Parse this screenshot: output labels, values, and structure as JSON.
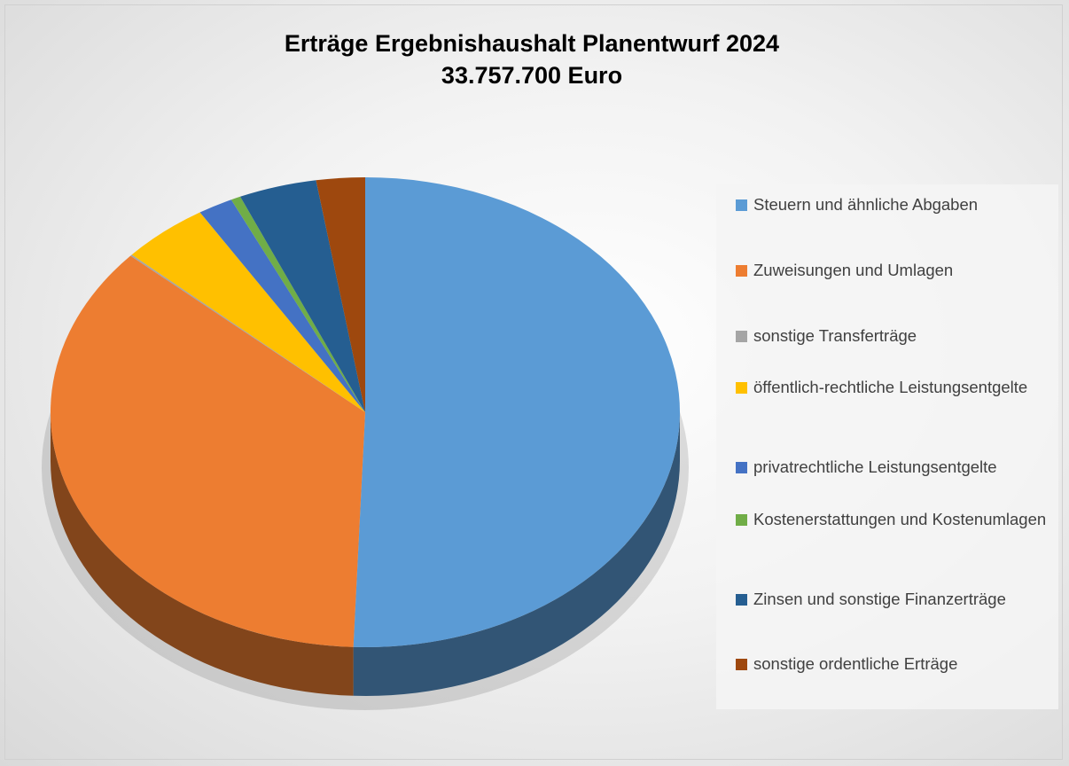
{
  "chart_data": {
    "type": "pie",
    "title": "Erträge Ergebnishaushalt Planentwurf 2024",
    "subtitle": "33.757.700 Euro",
    "categories": [
      "Steuern und ähnliche Abgaben",
      "Zuweisungen und Umlagen",
      "sonstige Transferträge",
      "öffentlich-rechtliche Leistungsentgelte",
      "privatrechtliche Leistungsentgelte",
      "Kostenerstattungen und Kostenumlagen",
      "Zinsen und sonstige Finanzerträge",
      "sonstige ordentliche Erträge"
    ],
    "values": [
      50.6,
      36,
      0.1,
      4.5,
      1.8,
      0.5,
      4,
      2.5
    ],
    "colors": [
      "#5b9bd5",
      "#ed7d31",
      "#a5a5a5",
      "#ffc000",
      "#4472c4",
      "#70ad47",
      "#255e91",
      "#9e480e"
    ],
    "legend": "right"
  }
}
